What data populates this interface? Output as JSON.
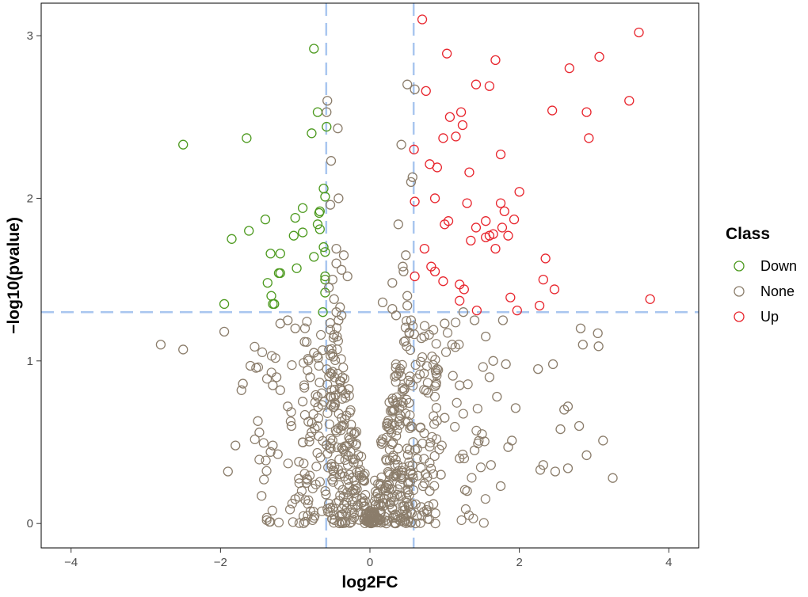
{
  "chart_data": {
    "type": "scatter",
    "xlabel": "log2FC",
    "ylabel": "−log10(pvalue)",
    "xlim": [
      -4.4,
      4.4
    ],
    "ylim": [
      -0.15,
      3.2
    ],
    "xticks": [
      -4,
      -2,
      0,
      2,
      4
    ],
    "xtick_labels": [
      "−4",
      "−2",
      "0",
      "2",
      "4"
    ],
    "yticks": [
      0,
      1,
      2,
      3
    ],
    "ytick_labels": [
      "0",
      "1",
      "2",
      "3"
    ],
    "thresholds": {
      "x": [
        -0.585,
        0.585
      ],
      "y": 1.3
    },
    "threshold_color": "#a9c6ef",
    "grid": false,
    "legend": {
      "title": "Class",
      "position": "right",
      "entries": [
        {
          "label": "Down",
          "color": "#4d9a1f"
        },
        {
          "label": "None",
          "color": "#8b7d6b"
        },
        {
          "label": "Up",
          "color": "#e8262e"
        }
      ]
    },
    "series": [
      {
        "name": "Down",
        "color": "#4d9a1f",
        "points": [
          [
            -2.5,
            2.33
          ],
          [
            -1.65,
            2.37
          ],
          [
            -0.75,
            2.92
          ],
          [
            -0.7,
            2.53
          ],
          [
            -0.58,
            2.44
          ],
          [
            -0.78,
            2.4
          ],
          [
            -0.62,
            2.06
          ],
          [
            -0.6,
            2.01
          ],
          [
            -0.67,
            1.92
          ],
          [
            -0.68,
            1.91
          ],
          [
            -0.9,
            1.94
          ],
          [
            -1.0,
            1.88
          ],
          [
            -1.4,
            1.87
          ],
          [
            -0.7,
            1.84
          ],
          [
            -0.67,
            1.81
          ],
          [
            -0.62,
            1.7
          ],
          [
            -1.85,
            1.75
          ],
          [
            -1.62,
            1.8
          ],
          [
            -0.9,
            1.79
          ],
          [
            -1.02,
            1.77
          ],
          [
            -0.6,
            1.67
          ],
          [
            -1.33,
            1.66
          ],
          [
            -1.2,
            1.66
          ],
          [
            -0.75,
            1.64
          ],
          [
            -0.98,
            1.57
          ],
          [
            -1.2,
            1.54
          ],
          [
            -1.22,
            1.54
          ],
          [
            -0.6,
            1.52
          ],
          [
            -0.6,
            1.5
          ],
          [
            -1.37,
            1.48
          ],
          [
            -0.6,
            1.42
          ],
          [
            -1.32,
            1.4
          ],
          [
            -1.3,
            1.35
          ],
          [
            -1.28,
            1.35
          ],
          [
            -1.95,
            1.35
          ],
          [
            -0.63,
            1.3
          ]
        ]
      },
      {
        "name": "None",
        "color": "#8b7d6b",
        "points": [
          [
            -0.57,
            2.6
          ],
          [
            -0.58,
            2.53
          ],
          [
            -0.43,
            2.43
          ],
          [
            -0.52,
            2.23
          ],
          [
            -0.42,
            2.0
          ],
          [
            -0.53,
            1.96
          ],
          [
            -0.45,
            1.69
          ],
          [
            -0.35,
            1.65
          ],
          [
            -0.45,
            1.6
          ],
          [
            -0.38,
            1.56
          ],
          [
            -0.3,
            1.52
          ],
          [
            -0.5,
            1.5
          ],
          [
            -0.55,
            1.45
          ],
          [
            -0.48,
            1.38
          ],
          [
            -0.4,
            1.33
          ],
          [
            -0.45,
            1.3
          ],
          [
            -0.38,
            1.28
          ],
          [
            -0.42,
            1.25
          ],
          [
            0.5,
            2.7
          ],
          [
            0.6,
            2.67
          ],
          [
            0.42,
            2.33
          ],
          [
            0.57,
            2.13
          ],
          [
            0.55,
            2.1
          ],
          [
            0.38,
            1.84
          ],
          [
            0.48,
            1.65
          ],
          [
            0.44,
            1.58
          ],
          [
            0.45,
            1.55
          ],
          [
            0.3,
            1.48
          ],
          [
            0.5,
            1.4
          ],
          [
            0.17,
            1.36
          ],
          [
            0.3,
            1.32
          ],
          [
            0.5,
            1.34
          ],
          [
            0.35,
            1.28
          ],
          [
            0.55,
            1.25
          ],
          [
            -2.8,
            1.1
          ],
          [
            -2.5,
            1.07
          ],
          [
            -1.95,
            1.18
          ],
          [
            -1.72,
            0.82
          ],
          [
            -1.6,
            0.97
          ],
          [
            -1.7,
            0.86
          ],
          [
            -1.5,
            0.63
          ],
          [
            -1.48,
            0.56
          ],
          [
            -1.3,
            0.48
          ],
          [
            -1.33,
            0.44
          ],
          [
            -1.8,
            0.48
          ],
          [
            -1.9,
            0.32
          ],
          [
            -1.45,
            0.17
          ],
          [
            -1.25,
            0.9
          ],
          [
            -1.2,
            0.82
          ],
          [
            -1.05,
            0.6
          ],
          [
            -0.9,
            0.5
          ],
          [
            -0.95,
            0.38
          ],
          [
            -0.85,
            0.25
          ],
          [
            -1.0,
            0.15
          ],
          [
            -1.2,
            1.23
          ],
          [
            -1.1,
            1.25
          ],
          [
            -1.0,
            1.2
          ],
          [
            -0.8,
            0.9
          ],
          [
            -0.75,
            1.05
          ],
          [
            -0.7,
            0.78
          ],
          [
            -0.9,
            0.75
          ],
          [
            -1.1,
            0.72
          ],
          [
            -1.3,
            0.85
          ],
          [
            2.25,
            0.95
          ],
          [
            2.45,
            0.98
          ],
          [
            2.6,
            0.7
          ],
          [
            2.65,
            0.72
          ],
          [
            2.55,
            0.58
          ],
          [
            2.8,
            0.6
          ],
          [
            2.9,
            0.42
          ],
          [
            3.12,
            0.51
          ],
          [
            3.25,
            0.28
          ],
          [
            2.65,
            0.34
          ],
          [
            2.48,
            0.32
          ],
          [
            2.32,
            0.36
          ],
          [
            2.28,
            0.33
          ],
          [
            2.85,
            1.1
          ],
          [
            2.82,
            1.2
          ],
          [
            3.05,
            1.17
          ],
          [
            3.06,
            1.09
          ],
          [
            1.95,
            0.71
          ],
          [
            1.9,
            0.51
          ],
          [
            1.85,
            0.47
          ],
          [
            1.75,
            0.23
          ],
          [
            1.62,
            0.36
          ],
          [
            1.7,
            0.78
          ],
          [
            1.82,
            0.98
          ],
          [
            1.78,
            1.25
          ],
          [
            1.6,
            0.9
          ],
          [
            1.5,
            0.55
          ],
          [
            1.4,
            0.45
          ],
          [
            1.3,
            0.2
          ],
          [
            1.2,
            0.85
          ],
          [
            1.1,
            1.1
          ],
          [
            1.0,
            0.65
          ],
          [
            0.95,
            0.3
          ],
          [
            0.85,
            0.12
          ],
          [
            0.8,
            0.2
          ],
          [
            1.25,
            1.3
          ],
          [
            1.4,
            1.25
          ],
          [
            1.55,
            1.15
          ],
          [
            1.65,
            1.0
          ],
          [
            1.2,
            0.4
          ],
          [
            1.0,
            1.23
          ],
          [
            0.9,
            0.95
          ]
        ]
      },
      {
        "name": "Up",
        "color": "#e8262e",
        "points": [
          [
            0.7,
            3.1
          ],
          [
            1.03,
            2.89
          ],
          [
            3.6,
            3.02
          ],
          [
            1.68,
            2.85
          ],
          [
            3.07,
            2.87
          ],
          [
            2.67,
            2.8
          ],
          [
            0.75,
            2.66
          ],
          [
            1.42,
            2.7
          ],
          [
            1.6,
            2.69
          ],
          [
            3.47,
            2.6
          ],
          [
            2.44,
            2.54
          ],
          [
            2.9,
            2.53
          ],
          [
            1.22,
            2.53
          ],
          [
            1.07,
            2.5
          ],
          [
            1.24,
            2.45
          ],
          [
            2.93,
            2.37
          ],
          [
            0.98,
            2.37
          ],
          [
            1.15,
            2.38
          ],
          [
            0.59,
            2.3
          ],
          [
            1.75,
            2.27
          ],
          [
            0.8,
            2.21
          ],
          [
            0.9,
            2.19
          ],
          [
            1.33,
            2.16
          ],
          [
            2.0,
            2.04
          ],
          [
            0.6,
            1.98
          ],
          [
            0.87,
            2.0
          ],
          [
            1.3,
            1.97
          ],
          [
            1.75,
            1.97
          ],
          [
            1.8,
            1.92
          ],
          [
            1.0,
            1.84
          ],
          [
            1.05,
            1.86
          ],
          [
            1.55,
            1.86
          ],
          [
            1.93,
            1.87
          ],
          [
            1.42,
            1.82
          ],
          [
            1.77,
            1.82
          ],
          [
            1.65,
            1.78
          ],
          [
            1.6,
            1.77
          ],
          [
            1.55,
            1.76
          ],
          [
            1.85,
            1.77
          ],
          [
            1.35,
            1.74
          ],
          [
            1.68,
            1.69
          ],
          [
            0.73,
            1.69
          ],
          [
            2.35,
            1.63
          ],
          [
            0.82,
            1.58
          ],
          [
            0.87,
            1.55
          ],
          [
            0.6,
            1.52
          ],
          [
            0.98,
            1.49
          ],
          [
            2.32,
            1.5
          ],
          [
            1.2,
            1.47
          ],
          [
            1.26,
            1.44
          ],
          [
            2.47,
            1.44
          ],
          [
            1.88,
            1.39
          ],
          [
            3.75,
            1.38
          ],
          [
            2.27,
            1.34
          ],
          [
            1.2,
            1.37
          ],
          [
            1.43,
            1.31
          ],
          [
            1.97,
            1.31
          ]
        ]
      }
    ]
  }
}
